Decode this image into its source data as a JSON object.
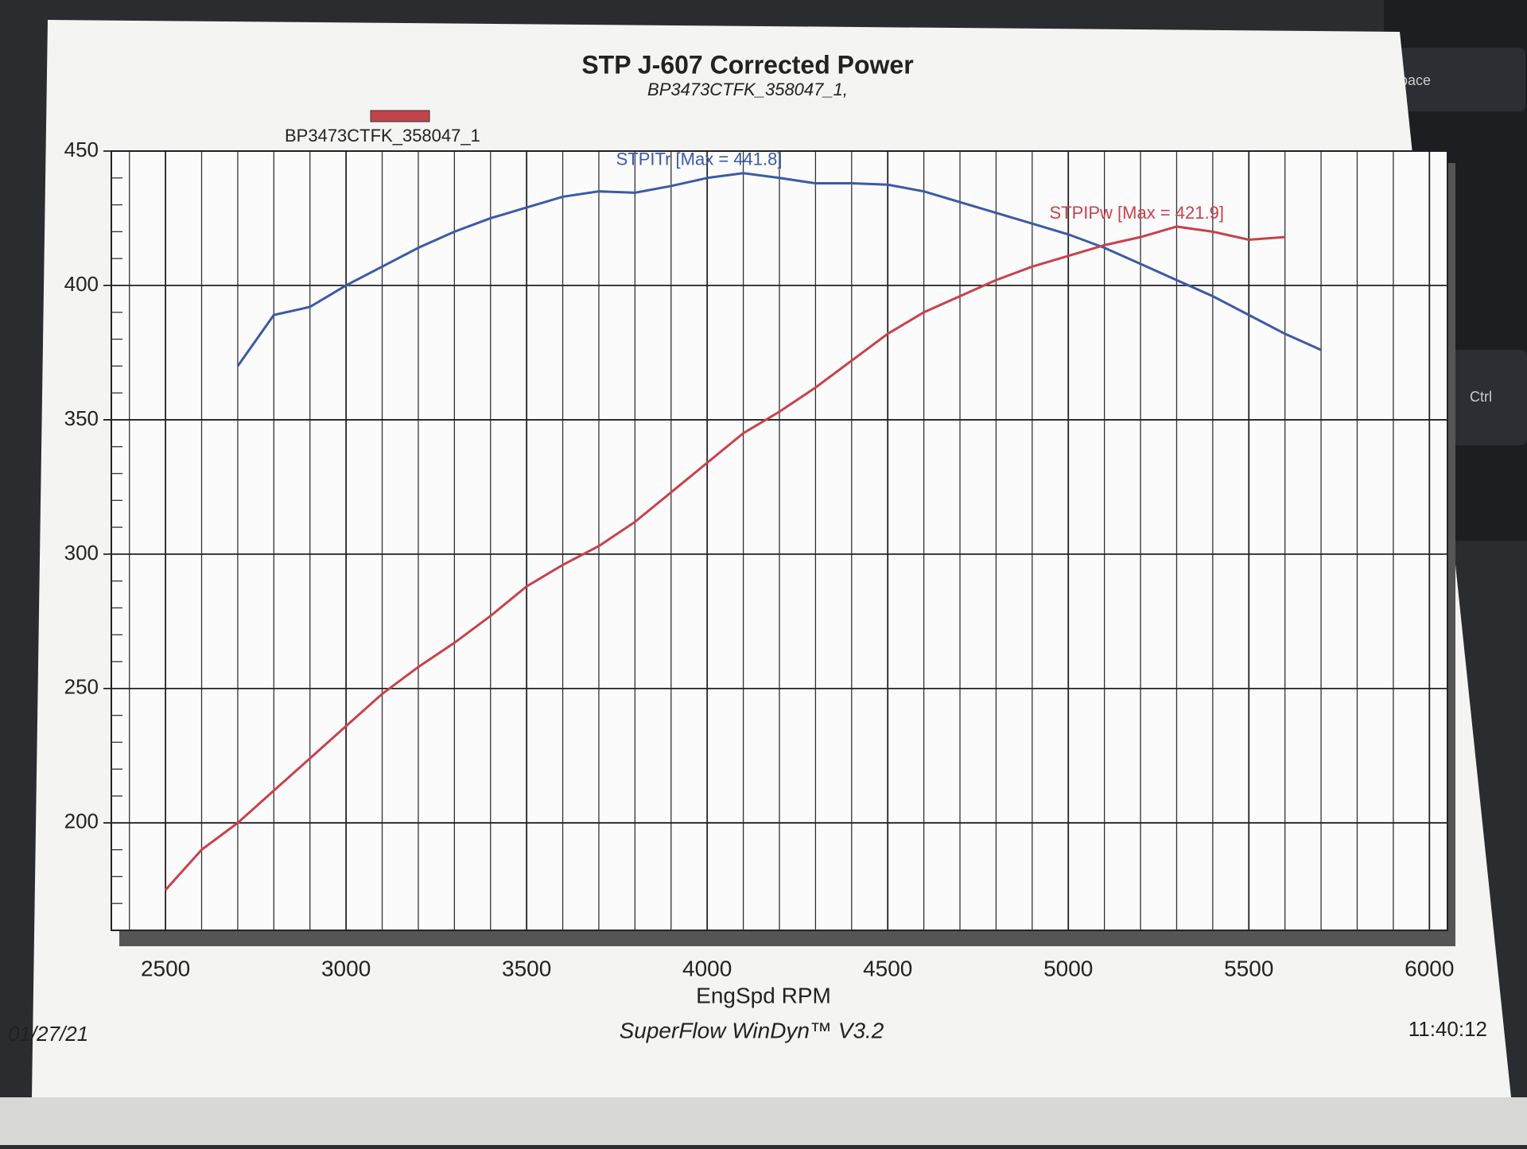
{
  "chart_data": {
    "type": "line",
    "title": "STP J-607 Corrected Power",
    "subtitle": "BP3473CTFK_358047_1,",
    "legend_label": "BP3473CTFK_358047_1",
    "legend_color": "#c0444c",
    "xlabel": "EngSpd RPM",
    "x": [
      2500,
      2600,
      2700,
      2800,
      2900,
      3000,
      3100,
      3200,
      3300,
      3400,
      3500,
      3600,
      3700,
      3800,
      3900,
      4000,
      4100,
      4200,
      4300,
      4400,
      4500,
      4600,
      4700,
      4800,
      4900,
      5000,
      5100,
      5200,
      5300,
      5400,
      5500,
      5600,
      5700
    ],
    "series": [
      {
        "name": "STPITr",
        "color": "#3b5aa6",
        "annotation": "STPITr [Max = 441.8]",
        "values": [
          null,
          null,
          370,
          389,
          392,
          400,
          407,
          414,
          420,
          425,
          429,
          433,
          435,
          434.5,
          437,
          440,
          441.8,
          440,
          438,
          438,
          437.5,
          435,
          431,
          427,
          423,
          419,
          414,
          408,
          402,
          396,
          389,
          382,
          376
        ]
      },
      {
        "name": "STPIPw",
        "color": "#c8414b",
        "annotation": "STPIPw [Max = 421.9]",
        "values": [
          175,
          190,
          200,
          212,
          224,
          236,
          248,
          258,
          267,
          277,
          288,
          296,
          303,
          312,
          323,
          334,
          345,
          353,
          362,
          372,
          382,
          390,
          396,
          402,
          407,
          411,
          415,
          418,
          421.9,
          420,
          417,
          418,
          null
        ]
      }
    ],
    "xlim": [
      2350,
      6050
    ],
    "ylim": [
      160,
      450
    ],
    "xticks": [
      2500,
      3000,
      3500,
      4000,
      4500,
      5000,
      5500,
      6000
    ],
    "yticks": [
      200,
      250,
      300,
      350,
      400,
      450
    ],
    "xminorticks": [
      2400,
      2600,
      2700,
      2800,
      2900,
      3100,
      3200,
      3300,
      3400,
      3600,
      3700,
      3800,
      3900,
      4100,
      4200,
      4300,
      4400,
      4600,
      4700,
      4800,
      4900,
      5100,
      5200,
      5300,
      5400,
      5600,
      5700,
      5800,
      5900
    ],
    "yminorticks": [
      170,
      180,
      190,
      210,
      220,
      230,
      240,
      260,
      270,
      280,
      290,
      310,
      320,
      330,
      340,
      360,
      370,
      380,
      390,
      410,
      420,
      430,
      440
    ],
    "grid": true,
    "footer_left": "01/27/21",
    "footer_center": "SuperFlow WinDyn™ V3.2",
    "footer_right": "11:40:12"
  },
  "keyboard_keys": [
    "pace",
    "Ctrl"
  ]
}
